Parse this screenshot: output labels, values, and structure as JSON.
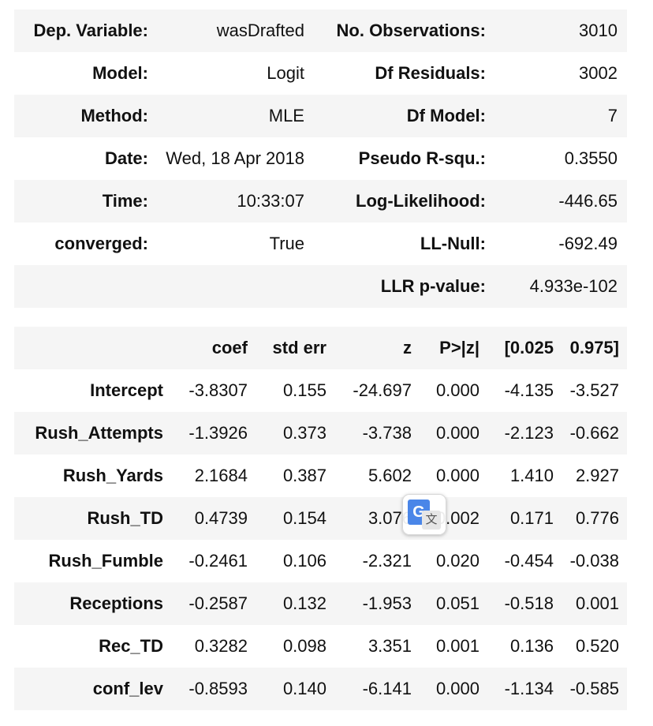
{
  "summary": {
    "rows": [
      {
        "label1": "Dep. Variable:",
        "value1": "wasDrafted",
        "label2": "No. Observations:",
        "value2": "3010"
      },
      {
        "label1": "Model:",
        "value1": "Logit",
        "label2": "Df Residuals:",
        "value2": "3002"
      },
      {
        "label1": "Method:",
        "value1": "MLE",
        "label2": "Df Model:",
        "value2": "7"
      },
      {
        "label1": "Date:",
        "value1": "Wed, 18 Apr 2018",
        "label2": "Pseudo R-squ.:",
        "value2": "0.3550"
      },
      {
        "label1": "Time:",
        "value1": "10:33:07",
        "label2": "Log-Likelihood:",
        "value2": "-446.65"
      },
      {
        "label1": "converged:",
        "value1": "True",
        "label2": "LL-Null:",
        "value2": "-692.49"
      },
      {
        "label1": "",
        "value1": "",
        "label2": "LLR p-value:",
        "value2": "4.933e-102"
      }
    ]
  },
  "coefficients": {
    "headers": [
      "",
      "coef",
      "std err",
      "z",
      "P>|z|",
      "[0.025",
      "0.975]"
    ],
    "rows": [
      {
        "name": "Intercept",
        "values": [
          "-3.8307",
          "0.155",
          "-24.697",
          "0.000",
          "-4.135",
          "-3.527"
        ]
      },
      {
        "name": "Rush_Attempts",
        "values": [
          "-1.3926",
          "0.373",
          "-3.738",
          "0.000",
          "-2.123",
          "-0.662"
        ]
      },
      {
        "name": "Rush_Yards",
        "values": [
          "2.1684",
          "0.387",
          "5.602",
          "0.000",
          "1.410",
          "2.927"
        ]
      },
      {
        "name": "Rush_TD",
        "values": [
          "0.4739",
          "0.154",
          "3.076",
          "0.002",
          "0.171",
          "0.776"
        ]
      },
      {
        "name": "Rush_Fumble",
        "values": [
          "-0.2461",
          "0.106",
          "-2.321",
          "0.020",
          "-0.454",
          "-0.038"
        ]
      },
      {
        "name": "Receptions",
        "values": [
          "-0.2587",
          "0.132",
          "-1.953",
          "0.051",
          "-0.518",
          "0.001"
        ]
      },
      {
        "name": "Rec_TD",
        "values": [
          "0.3282",
          "0.098",
          "3.351",
          "0.001",
          "0.136",
          "0.520"
        ]
      },
      {
        "name": "conf_lev",
        "values": [
          "-0.8593",
          "0.140",
          "-6.141",
          "0.000",
          "-1.134",
          "-0.585"
        ]
      }
    ]
  },
  "translate_badge": {
    "icon": "google-translate-icon",
    "g_glyph": "G",
    "t_glyph": "文"
  }
}
